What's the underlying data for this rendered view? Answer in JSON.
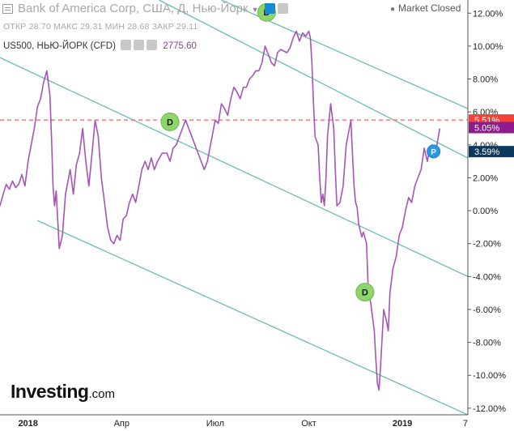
{
  "header": {
    "title": "Bank of America Corp, США, Д, Нью-Йорк",
    "ohlc": "ОТКР 28.70  МАКС 29.31  МИН 28.68  ЗАКР 29.11",
    "compare_symbol": "US500, НЬЮ-ЙОРК (CFD)",
    "compare_value": "2775.60",
    "status": "Market Closed"
  },
  "logo": {
    "main": "Investing",
    "suffix": ".com"
  },
  "icons": [
    "hamburger-menu-icon",
    "eye-icon",
    "settings-icon",
    "chevron-down-icon",
    "market-status-dot-icon"
  ],
  "chart_data": {
    "type": "line",
    "x_tick_labels": [
      "2018",
      "Апр",
      "Июл",
      "Окт",
      "2019",
      "7"
    ],
    "x_tick_positions": [
      0.0,
      3.0,
      6.0,
      9.0,
      12.0,
      14.1
    ],
    "yticks": [
      12.0,
      10.0,
      8.0,
      6.0,
      4.0,
      2.0,
      0.0,
      -2.0,
      -4.0,
      -6.0,
      -8.0,
      -10.0,
      -12.0
    ],
    "ytick_labels": [
      "12.00%",
      "10.00%",
      "8.00%",
      "6.00%",
      "4.00%",
      "2.00%",
      "0.00%",
      "-2.00%",
      "-4.00%",
      "-6.00%",
      "-8.00%",
      "-10.00%",
      "-12.00%"
    ],
    "ylim": [
      -12.4,
      12.8
    ],
    "xlim": [
      -0.9,
      14.1
    ],
    "grid": false,
    "series": [
      {
        "name": "US500",
        "color": "#a555b5",
        "points": [
          [
            -0.9,
            0.3
          ],
          [
            -0.8,
            1.0
          ],
          [
            -0.7,
            1.6
          ],
          [
            -0.6,
            1.3
          ],
          [
            -0.5,
            1.8
          ],
          [
            -0.4,
            1.4
          ],
          [
            -0.3,
            1.6
          ],
          [
            -0.2,
            2.2
          ],
          [
            -0.1,
            1.5
          ],
          [
            0.0,
            3.0
          ],
          [
            0.1,
            4.0
          ],
          [
            0.2,
            5.0
          ],
          [
            0.3,
            6.3
          ],
          [
            0.4,
            6.8
          ],
          [
            0.5,
            7.8
          ],
          [
            0.6,
            8.5
          ],
          [
            0.7,
            7.0
          ],
          [
            0.75,
            4.5
          ],
          [
            0.8,
            1.5
          ],
          [
            0.85,
            0.3
          ],
          [
            0.9,
            1.2
          ],
          [
            1.0,
            -2.3
          ],
          [
            1.1,
            -1.5
          ],
          [
            1.2,
            1.0
          ],
          [
            1.35,
            2.5
          ],
          [
            1.45,
            1.0
          ],
          [
            1.55,
            2.8
          ],
          [
            1.65,
            3.5
          ],
          [
            1.75,
            5.0
          ],
          [
            1.85,
            3.0
          ],
          [
            1.95,
            1.5
          ],
          [
            2.05,
            3.5
          ],
          [
            2.15,
            5.5
          ],
          [
            2.25,
            4.5
          ],
          [
            2.35,
            2.0
          ],
          [
            2.45,
            0.5
          ],
          [
            2.55,
            -1.0
          ],
          [
            2.65,
            -1.8
          ],
          [
            2.75,
            -2.0
          ],
          [
            2.85,
            -1.5
          ],
          [
            2.95,
            -1.8
          ],
          [
            3.05,
            -0.5
          ],
          [
            3.15,
            -0.3
          ],
          [
            3.25,
            0.5
          ],
          [
            3.35,
            1.0
          ],
          [
            3.45,
            0.5
          ],
          [
            3.55,
            1.5
          ],
          [
            3.65,
            2.5
          ],
          [
            3.75,
            3.0
          ],
          [
            3.85,
            2.5
          ],
          [
            3.95,
            3.2
          ],
          [
            4.05,
            2.5
          ],
          [
            4.15,
            3.0
          ],
          [
            4.3,
            3.5
          ],
          [
            4.45,
            3.5
          ],
          [
            4.55,
            3.0
          ],
          [
            4.65,
            3.8
          ],
          [
            4.75,
            4.0
          ],
          [
            4.85,
            4.5
          ],
          [
            4.95,
            5.0
          ],
          [
            5.05,
            5.5
          ],
          [
            5.15,
            5.0
          ],
          [
            5.25,
            4.5
          ],
          [
            5.35,
            4.0
          ],
          [
            5.45,
            3.5
          ],
          [
            5.55,
            3.0
          ],
          [
            5.65,
            2.5
          ],
          [
            5.75,
            3.0
          ],
          [
            5.9,
            4.5
          ],
          [
            6.0,
            5.5
          ],
          [
            6.1,
            5.3
          ],
          [
            6.2,
            6.5
          ],
          [
            6.3,
            6.2
          ],
          [
            6.4,
            5.8
          ],
          [
            6.5,
            6.8
          ],
          [
            6.6,
            7.5
          ],
          [
            6.7,
            7.2
          ],
          [
            6.8,
            6.8
          ],
          [
            6.9,
            7.5
          ],
          [
            7.0,
            7.5
          ],
          [
            7.1,
            8.0
          ],
          [
            7.2,
            8.2
          ],
          [
            7.3,
            8.5
          ],
          [
            7.4,
            8.5
          ],
          [
            7.5,
            9.0
          ],
          [
            7.6,
            10.0
          ],
          [
            7.7,
            9.5
          ],
          [
            7.8,
            9.0
          ],
          [
            7.9,
            8.8
          ],
          [
            8.0,
            9.6
          ],
          [
            8.1,
            9.8
          ],
          [
            8.2,
            9.7
          ],
          [
            8.3,
            9.6
          ],
          [
            8.4,
            9.9
          ],
          [
            8.5,
            10.5
          ],
          [
            8.6,
            10.9
          ],
          [
            8.7,
            10.3
          ],
          [
            8.8,
            10.8
          ],
          [
            8.9,
            10.6
          ],
          [
            9.0,
            10.9
          ],
          [
            9.05,
            10.5
          ],
          [
            9.1,
            9.0
          ],
          [
            9.15,
            6.5
          ],
          [
            9.2,
            4.5
          ],
          [
            9.3,
            4.0
          ],
          [
            9.35,
            2.0
          ],
          [
            9.4,
            0.5
          ],
          [
            9.45,
            1.0
          ],
          [
            9.5,
            0.3
          ],
          [
            9.55,
            2.0
          ],
          [
            9.6,
            4.5
          ],
          [
            9.7,
            6.5
          ],
          [
            9.8,
            5.0
          ],
          [
            9.85,
            2.5
          ],
          [
            9.9,
            0.3
          ],
          [
            10.0,
            0.5
          ],
          [
            10.1,
            1.5
          ],
          [
            10.2,
            4.0
          ],
          [
            10.3,
            5.0
          ],
          [
            10.35,
            5.5
          ],
          [
            10.4,
            3.5
          ],
          [
            10.45,
            1.5
          ],
          [
            10.5,
            0.5
          ],
          [
            10.55,
            0.2
          ],
          [
            10.6,
            -0.8
          ],
          [
            10.7,
            -1.6
          ],
          [
            10.75,
            -1.3
          ],
          [
            10.85,
            -2.0
          ],
          [
            10.9,
            -4.5
          ],
          [
            11.0,
            -5.8
          ],
          [
            11.1,
            -7.3
          ],
          [
            11.15,
            -9.0
          ],
          [
            11.2,
            -10.5
          ],
          [
            11.25,
            -10.9
          ],
          [
            11.3,
            -9.5
          ],
          [
            11.4,
            -6.0
          ],
          [
            11.5,
            -6.8
          ],
          [
            11.55,
            -7.3
          ],
          [
            11.6,
            -5.0
          ],
          [
            11.7,
            -3.5
          ],
          [
            11.8,
            -2.8
          ],
          [
            11.9,
            -1.5
          ],
          [
            12.0,
            -1.0
          ],
          [
            12.1,
            0.0
          ],
          [
            12.2,
            0.8
          ],
          [
            12.3,
            0.5
          ],
          [
            12.4,
            1.5
          ],
          [
            12.5,
            2.0
          ],
          [
            12.6,
            2.5
          ],
          [
            12.7,
            3.8
          ],
          [
            12.8,
            3.0
          ],
          [
            12.85,
            3.5
          ],
          [
            12.95,
            4.0
          ],
          [
            13.05,
            3.5
          ],
          [
            13.1,
            3.9
          ],
          [
            13.2,
            5.0
          ]
        ]
      }
    ],
    "trend_channels": [
      {
        "color": "#6cbdb3",
        "from": [
          -0.9,
          9.3
        ],
        "to": [
          14.1,
          -4.0
        ]
      },
      {
        "color": "#6cbdb3",
        "from": [
          0.3,
          -0.6
        ],
        "to": [
          14.1,
          -12.4
        ]
      },
      {
        "color": "#6cbdb3",
        "from": [
          4.2,
          12.8
        ],
        "to": [
          14.1,
          3.2
        ]
      },
      {
        "color": "#6cbdb3",
        "from": [
          6.2,
          12.8
        ],
        "to": [
          14.1,
          6.2
        ]
      }
    ],
    "reference_line": {
      "value": 5.51,
      "color": "#f26161",
      "style": "dashed"
    },
    "price_labels": [
      {
        "text": "5.51%",
        "value": 5.51,
        "color": "#f44336"
      },
      {
        "text": "5.05%",
        "value": 5.05,
        "color": "#8e1a8e"
      },
      {
        "text": "3.59%",
        "value": 3.59,
        "color": "#0b3a5e"
      }
    ],
    "markers": [
      {
        "text": "D",
        "x": 7.65,
        "y": 12.05,
        "color": "#8ed56a"
      },
      {
        "text": "D",
        "x": 4.55,
        "y": 5.4,
        "color": "#8ed56a"
      },
      {
        "text": "D",
        "x": 10.8,
        "y": -4.95,
        "color": "#8ed56a"
      },
      {
        "text": "P",
        "x": 13.0,
        "y": 3.6,
        "color": "#2b96e8"
      }
    ]
  }
}
